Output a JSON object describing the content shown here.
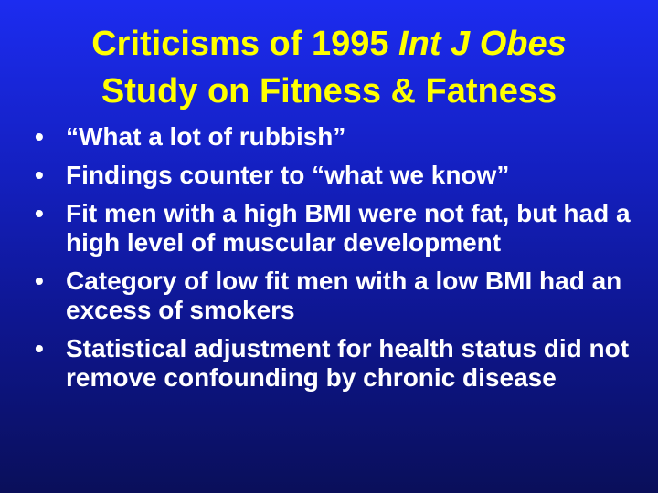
{
  "slide": {
    "title": {
      "line1_prefix": "Criticisms of 1995 ",
      "line1_italic": "Int J Obes",
      "line2": "Study on Fitness & Fatness"
    },
    "bullets": [
      "“What a lot of rubbish”",
      "Findings counter to “what we know”",
      "Fit men with a high BMI were not fat, but had a high level of muscular development",
      "Category of low fit men with a low BMI had an excess of smokers",
      "Statistical adjustment for health status did not remove confounding by chronic disease"
    ],
    "bullet_glyph": "•",
    "colors": {
      "title": "#ffff00",
      "text": "#ffffff",
      "background_top": "#1c2cf0",
      "background_bottom": "#0a0f5a"
    }
  }
}
